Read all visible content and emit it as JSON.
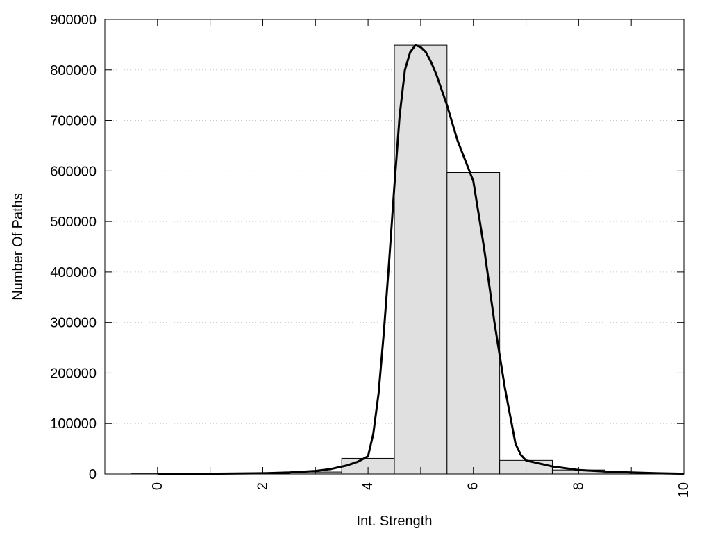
{
  "chart_data": {
    "type": "bar",
    "xlabel": "Int. Strength",
    "ylabel": "Number Of Paths",
    "xlim": [
      -1,
      10
    ],
    "ylim": [
      0,
      900000
    ],
    "x_ticks": [
      0,
      2,
      4,
      6,
      8,
      10
    ],
    "y_ticks": [
      0,
      100000,
      200000,
      300000,
      400000,
      500000,
      600000,
      700000,
      800000,
      900000
    ],
    "grid": "horizontal dotted",
    "bar_width": 1,
    "bars": {
      "x": [
        0,
        1,
        2,
        3,
        4,
        5,
        6,
        7,
        8,
        9
      ],
      "values": [
        500,
        1000,
        1500,
        4000,
        31000,
        849000,
        597000,
        27000,
        8000,
        2000
      ]
    },
    "series": [
      {
        "type": "line",
        "x": [
          0,
          1,
          2,
          2.5,
          3,
          3.3,
          3.6,
          3.8,
          4.0,
          4.1,
          4.2,
          4.3,
          4.4,
          4.5,
          4.6,
          4.7,
          4.8,
          4.9,
          5.0,
          5.1,
          5.2,
          5.3,
          5.5,
          5.7,
          6.0,
          6.2,
          6.4,
          6.6,
          6.8,
          6.9,
          7.0,
          7.5,
          8.0,
          8.5,
          9.0,
          9.5,
          10.0
        ],
        "values": [
          0,
          500,
          1500,
          3000,
          6000,
          10000,
          17000,
          24000,
          35000,
          80000,
          160000,
          280000,
          420000,
          570000,
          710000,
          800000,
          835000,
          849000,
          845000,
          835000,
          815000,
          790000,
          730000,
          660000,
          580000,
          450000,
          300000,
          170000,
          60000,
          38000,
          27000,
          15000,
          8000,
          5000,
          3000,
          1500,
          500
        ]
      }
    ]
  }
}
